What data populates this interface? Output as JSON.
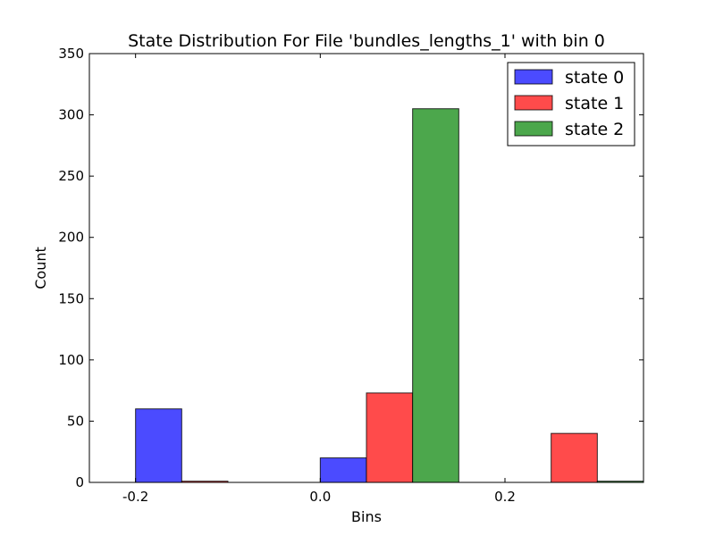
{
  "chart_data": {
    "type": "bar",
    "title": "State Distribution For File 'bundles_lengths_1' with bin 0",
    "xlabel": "Bins",
    "ylabel": "Count",
    "xlim": [
      -0.25,
      0.35
    ],
    "ylim": [
      0,
      350
    ],
    "x_ticks": [
      -0.2,
      0.0,
      0.2
    ],
    "x_tick_labels": [
      "-0.2",
      "0.0",
      "0.2"
    ],
    "y_ticks": [
      0,
      50,
      100,
      150,
      200,
      250,
      300,
      350
    ],
    "y_tick_labels": [
      "0",
      "50",
      "100",
      "150",
      "200",
      "250",
      "300",
      "350"
    ],
    "bar_width": 0.05,
    "grid": false,
    "legend_position": "top-right",
    "series": [
      {
        "name": "state 0",
        "color": "#4b4bff",
        "x": [
          -0.2,
          0.0,
          0.2
        ],
        "values": [
          60,
          20,
          0
        ]
      },
      {
        "name": "state 1",
        "color": "#ff4b4b",
        "x": [
          -0.15,
          0.05,
          0.25
        ],
        "values": [
          1,
          73,
          40
        ]
      },
      {
        "name": "state 2",
        "color": "#4ca74c",
        "x": [
          -0.1,
          0.1,
          0.3
        ],
        "values": [
          0,
          305,
          1
        ]
      }
    ]
  }
}
